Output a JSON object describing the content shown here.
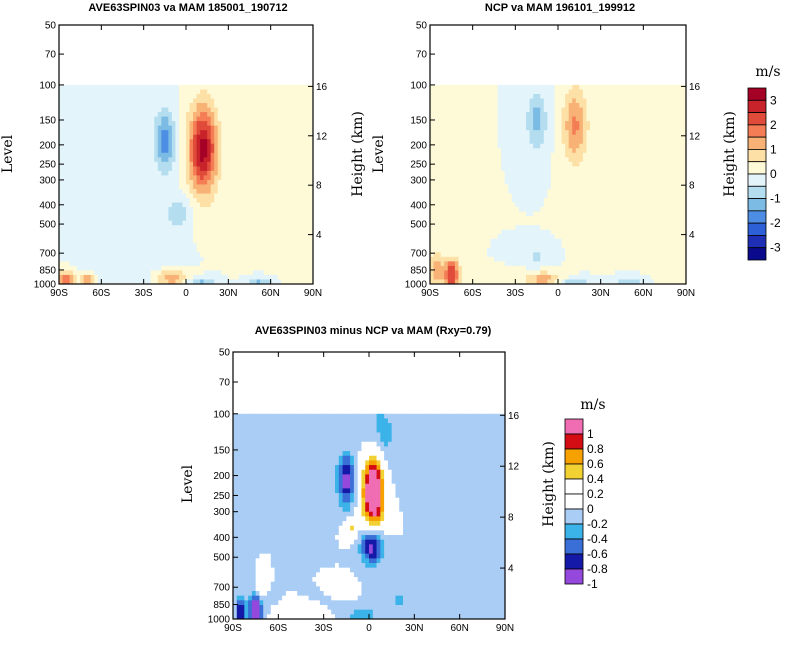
{
  "chart_data": [
    {
      "type": "heatmap",
      "title": "AVE63SPIN03 va MAM 185001_190712",
      "xlabel": "",
      "ylabel": "Level",
      "y2label": "Height (km)",
      "x_ticks": [
        "90S",
        "60S",
        "30S",
        "0",
        "30N",
        "60N",
        "90N"
      ],
      "x_values": [
        -90,
        -60,
        -30,
        0,
        30,
        60,
        90
      ],
      "y_ticks": [
        "50",
        "70",
        "100",
        "150",
        "200",
        "250",
        "300",
        "400",
        "500",
        "700",
        "850",
        "1000"
      ],
      "y_values": [
        50,
        70,
        100,
        150,
        200,
        250,
        300,
        400,
        500,
        700,
        850,
        1000
      ],
      "y2_ticks": [
        "16",
        "12",
        "8",
        "4"
      ],
      "y2_values": [
        16,
        12,
        8,
        4
      ],
      "ylim": [
        1000,
        50
      ],
      "xlim": [
        -90,
        90
      ],
      "y_scale": "log",
      "top_level": 100,
      "features": [
        {
          "lat": 12,
          "p": 210,
          "value": 3.2,
          "slat": 7,
          "sp": 0.35
        },
        {
          "lat": -15,
          "p": 190,
          "value": -1.8,
          "slat": 5,
          "sp": 0.25
        },
        {
          "lat": -5,
          "p": 440,
          "value": -0.9,
          "slat": 6,
          "sp": 0.12
        },
        {
          "lat": -85,
          "p": 950,
          "value": 1.8,
          "slat": 4,
          "sp": 0.08
        },
        {
          "lat": -70,
          "p": 960,
          "value": 1.5,
          "slat": 4,
          "sp": 0.07
        },
        {
          "lat": -10,
          "p": 940,
          "value": 1.4,
          "slat": 9,
          "sp": 0.07
        },
        {
          "lat": 10,
          "p": 1000,
          "value": -1.3,
          "slat": 8,
          "sp": 0.05
        },
        {
          "lat": 52,
          "p": 990,
          "value": -1.1,
          "slat": 6,
          "sp": 0.05
        },
        {
          "lat": -45,
          "p": 700,
          "value": -0.5,
          "slat": 20,
          "sp": 0.5
        },
        {
          "lat": 60,
          "p": 300,
          "value": 0.25,
          "slat": 20,
          "sp": 0.6
        }
      ],
      "colorbar": {
        "unit": "m/s",
        "labels": [
          "3",
          "2",
          "1",
          "0",
          "-1",
          "-2",
          "-3"
        ],
        "levels": [
          3,
          2.5,
          2,
          1.5,
          1,
          0.5,
          0,
          -0.5,
          -1,
          -1.5,
          -2,
          -2.5,
          -3
        ],
        "colors": [
          "#a50026",
          "#c8232b",
          "#e04b3a",
          "#f47d55",
          "#f8b276",
          "#fce0a6",
          "#fefad8",
          "#e3f4fa",
          "#b4def0",
          "#7bbbe4",
          "#4d8ee4",
          "#2d5fd6",
          "#1e2fb5",
          "#0a0a8c"
        ]
      }
    },
    {
      "type": "heatmap",
      "title": "NCP va MAM 196101_199912",
      "xlabel": "",
      "ylabel": "Level",
      "y2label": "Height (km)",
      "x_ticks": [
        "90S",
        "60S",
        "30S",
        "0",
        "30N",
        "60N",
        "90N"
      ],
      "x_values": [
        -90,
        -60,
        -30,
        0,
        30,
        60,
        90
      ],
      "y_ticks": [
        "50",
        "70",
        "100",
        "150",
        "200",
        "250",
        "300",
        "400",
        "500",
        "700",
        "850",
        "1000"
      ],
      "y_values": [
        50,
        70,
        100,
        150,
        200,
        250,
        300,
        400,
        500,
        700,
        850,
        1000
      ],
      "y2_ticks": [
        "16",
        "12",
        "8",
        "4"
      ],
      "y2_values": [
        16,
        12,
        8,
        4
      ],
      "ylim": [
        1000,
        50
      ],
      "xlim": [
        -90,
        90
      ],
      "y_scale": "log",
      "top_level": 100,
      "features": [
        {
          "lat": 12,
          "p": 160,
          "value": 1.6,
          "slat": 6,
          "sp": 0.3
        },
        {
          "lat": -15,
          "p": 150,
          "value": -1.2,
          "slat": 5,
          "sp": 0.25
        },
        {
          "lat": -75,
          "p": 900,
          "value": 2.6,
          "slat": 4,
          "sp": 0.13
        },
        {
          "lat": -86,
          "p": 850,
          "value": 1.3,
          "slat": 3,
          "sp": 0.15
        },
        {
          "lat": -10,
          "p": 950,
          "value": 1.3,
          "slat": 10,
          "sp": 0.06
        },
        {
          "lat": -15,
          "p": 720,
          "value": -0.6,
          "slat": 6,
          "sp": 0.08
        },
        {
          "lat": 10,
          "p": 1000,
          "value": -1.1,
          "slat": 8,
          "sp": 0.05
        },
        {
          "lat": 50,
          "p": 980,
          "value": -0.8,
          "slat": 7,
          "sp": 0.05
        },
        {
          "lat": 60,
          "p": 300,
          "value": 0.2,
          "slat": 20,
          "sp": 0.6
        }
      ],
      "colorbar": {
        "unit": "m/s",
        "labels": [
          "3",
          "2",
          "1",
          "0",
          "-1",
          "-2",
          "-3"
        ],
        "levels": [
          3,
          2.5,
          2,
          1.5,
          1,
          0.5,
          0,
          -0.5,
          -1,
          -1.5,
          -2,
          -2.5,
          -3
        ],
        "colors": [
          "#a50026",
          "#c8232b",
          "#e04b3a",
          "#f47d55",
          "#f8b276",
          "#fce0a6",
          "#fefad8",
          "#e3f4fa",
          "#b4def0",
          "#7bbbe4",
          "#4d8ee4",
          "#2d5fd6",
          "#1e2fb5",
          "#0a0a8c"
        ]
      }
    },
    {
      "type": "heatmap",
      "title": "AVE63SPIN03 minus NCP va MAM (Rxy=0.79)",
      "xlabel": "",
      "ylabel": "Level",
      "y2label": "Height (km)",
      "x_ticks": [
        "90S",
        "60S",
        "30S",
        "0",
        "30N",
        "60N",
        "90N"
      ],
      "x_values": [
        -90,
        -60,
        -30,
        0,
        30,
        60,
        90
      ],
      "y_ticks": [
        "50",
        "70",
        "100",
        "150",
        "200",
        "250",
        "300",
        "400",
        "500",
        "700",
        "850",
        "1000"
      ],
      "y_values": [
        50,
        70,
        100,
        150,
        200,
        250,
        300,
        400,
        500,
        700,
        850,
        1000
      ],
      "y2_ticks": [
        "16",
        "12",
        "8",
        "4"
      ],
      "y2_values": [
        16,
        12,
        8,
        4
      ],
      "ylim": [
        1000,
        50
      ],
      "xlim": [
        -90,
        90
      ],
      "y_scale": "log",
      "top_level": 100,
      "features": [
        {
          "lat": 3,
          "p": 240,
          "value": 1.6,
          "slat": 5,
          "sp": 0.28
        },
        {
          "lat": -15,
          "p": 210,
          "value": -0.9,
          "slat": 4,
          "sp": 0.2
        },
        {
          "lat": 2,
          "p": 440,
          "value": -1.0,
          "slat": 5,
          "sp": 0.14
        },
        {
          "lat": -12,
          "p": 360,
          "value": 0.45,
          "slat": 3,
          "sp": 0.08
        },
        {
          "lat": 8,
          "p": 130,
          "value": -0.3,
          "slat": 8,
          "sp": 0.3
        },
        {
          "lat": -75,
          "p": 900,
          "value": -1.2,
          "slat": 3,
          "sp": 0.12
        },
        {
          "lat": -85,
          "p": 920,
          "value": -0.9,
          "slat": 2,
          "sp": 0.1
        },
        {
          "lat": -72,
          "p": 720,
          "value": 0.3,
          "slat": 2,
          "sp": 0.08
        },
        {
          "lat": -45,
          "p": 980,
          "value": 0.4,
          "slat": 10,
          "sp": 0.04
        },
        {
          "lat": -15,
          "p": 700,
          "value": 0.35,
          "slat": 3,
          "sp": 0.06
        },
        {
          "lat": -5,
          "p": 950,
          "value": -0.3,
          "slat": 8,
          "sp": 0.06
        },
        {
          "lat": 20,
          "p": 800,
          "value": -0.22,
          "slat": 8,
          "sp": 0.1
        }
      ],
      "colorbar": {
        "unit": "m/s",
        "labels": [
          "1",
          "0.8",
          "0.6",
          "0.4",
          "0.2",
          "0",
          "-0.2",
          "-0.4",
          "-0.6",
          "-0.8",
          "-1"
        ],
        "levels": [
          1,
          0.8,
          0.6,
          0.4,
          0.2,
          0,
          -0.2,
          -0.4,
          -0.6,
          -0.8,
          -1
        ],
        "colors": [
          "#f06db3",
          "#d40c14",
          "#f7a100",
          "#f2d133",
          "#ffffff",
          "#ffffff",
          "#a9cdf4",
          "#3bb3e8",
          "#3a6fd8",
          "#1519a8",
          "#9448dc"
        ]
      }
    }
  ]
}
